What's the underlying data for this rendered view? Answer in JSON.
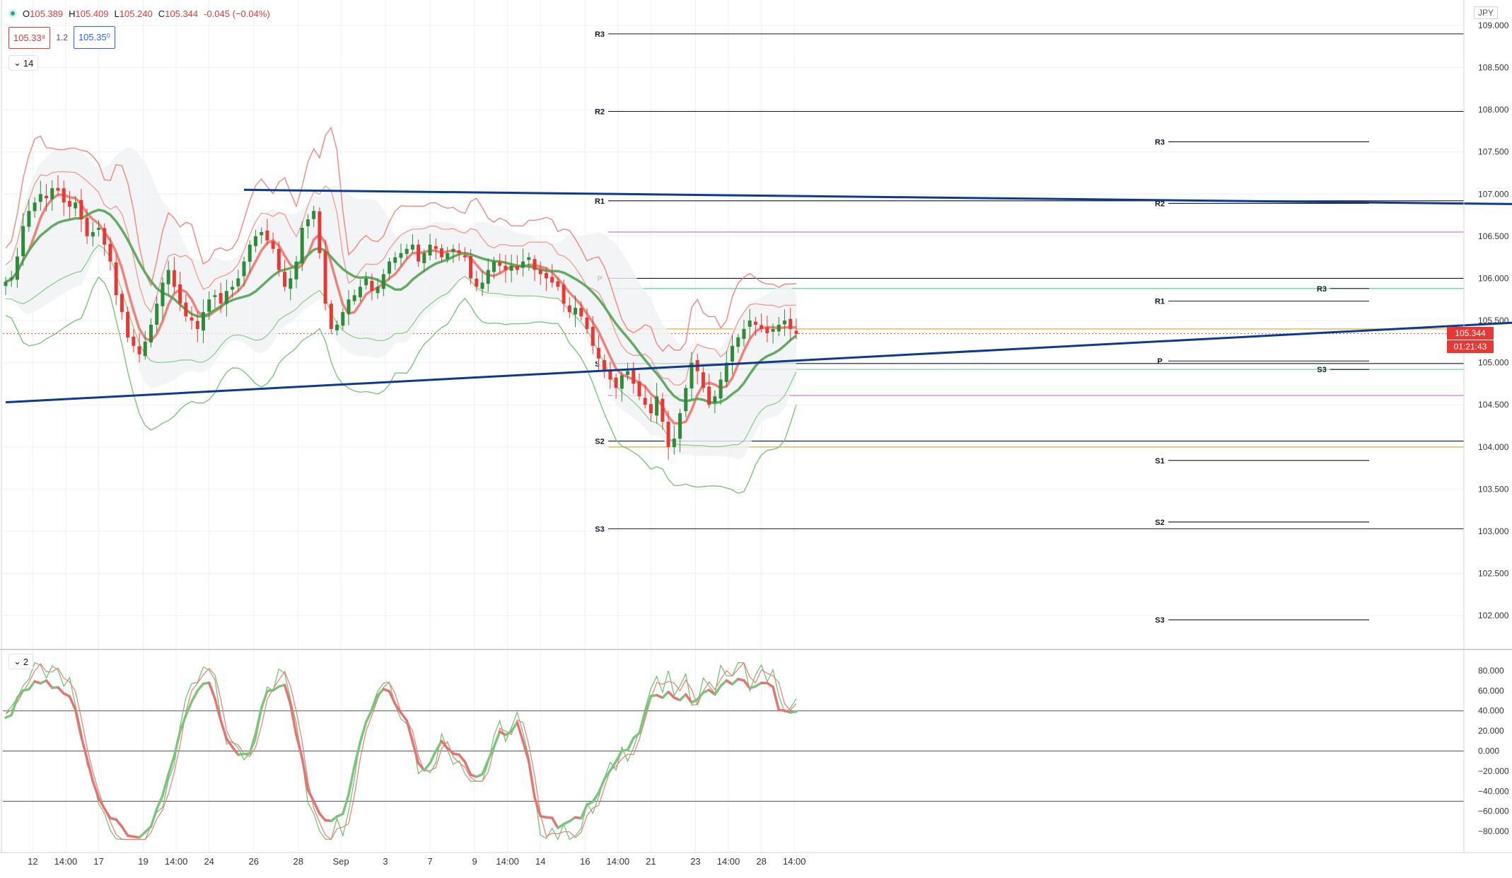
{
  "header": {
    "open_label": "O",
    "open": "105.389",
    "high_label": "H",
    "high": "105.409",
    "low_label": "L",
    "low": "105.240",
    "close_label": "C",
    "close": "105.344",
    "change": "-0.045 (−0.04%)",
    "sell_price": "105.33⁸",
    "spread": "1.2",
    "buy_price": "105.35⁰",
    "main_pane_label": "14",
    "osc_pane_label": "2",
    "currency": "JPY"
  },
  "price_tags": {
    "last_price": "105.344",
    "countdown": "01:21:43"
  },
  "colors": {
    "up": "#2e8b3a",
    "down": "#e53935",
    "trendline": "#0d3a8c",
    "band_red": "#ef7a74",
    "band_green": "#6bbf6b",
    "pivot": "#131722",
    "magenta": "#da82e0",
    "gold": "#e6b34a",
    "mint": "#7ed9a6"
  },
  "chart_data": [
    {
      "type": "candlestick",
      "symbol_currency": "JPY",
      "ylim": [
        101.85,
        109.05
      ],
      "y_ticks": [
        "102.000",
        "102.500",
        "103.000",
        "103.500",
        "104.000",
        "104.500",
        "105.000",
        "105.500",
        "106.000",
        "106.500",
        "107.000",
        "107.500",
        "108.000",
        "108.500",
        "109.000"
      ],
      "x_ticks": [
        {
          "bar": 14,
          "label": "12"
        },
        {
          "bar": 31,
          "label": "14:00"
        },
        {
          "bar": 48,
          "label": "17"
        },
        {
          "bar": 71,
          "label": "19"
        },
        {
          "bar": 88,
          "label": "14:00"
        },
        {
          "bar": 105,
          "label": "24"
        },
        {
          "bar": 128,
          "label": "26"
        },
        {
          "bar": 151,
          "label": "28"
        },
        {
          "bar": 173,
          "label": "Sep"
        },
        {
          "bar": 196,
          "label": "3"
        },
        {
          "bar": 219,
          "label": "7"
        },
        {
          "bar": 242,
          "label": "9"
        },
        {
          "bar": 259,
          "label": "14:00"
        },
        {
          "bar": 276,
          "label": "14"
        },
        {
          "bar": 299,
          "label": "16"
        },
        {
          "bar": 316,
          "label": "14:00"
        },
        {
          "bar": 333,
          "label": "21"
        },
        {
          "bar": 356,
          "label": "23"
        },
        {
          "bar": 373,
          "label": "14:00"
        },
        {
          "bar": 390,
          "label": "28"
        },
        {
          "bar": 407,
          "label": "14:00"
        }
      ],
      "closes": [
        105.96,
        106.01,
        106.26,
        106.62,
        106.8,
        106.9,
        107.0,
        106.95,
        107.07,
        107.04,
        106.9,
        106.85,
        106.9,
        106.7,
        106.5,
        106.55,
        106.6,
        106.4,
        106.2,
        105.8,
        105.6,
        105.3,
        105.2,
        105.1,
        105.25,
        105.45,
        105.7,
        105.95,
        106.1,
        105.9,
        105.7,
        105.55,
        105.5,
        105.4,
        105.6,
        105.75,
        105.8,
        105.7,
        105.85,
        105.9,
        106.0,
        106.2,
        106.4,
        106.5,
        106.55,
        106.45,
        106.35,
        106.1,
        105.9,
        106.0,
        106.2,
        106.6,
        106.7,
        106.8,
        106.3,
        105.7,
        105.4,
        105.45,
        105.6,
        105.75,
        105.8,
        105.9,
        106.0,
        105.85,
        105.9,
        106.05,
        106.2,
        106.25,
        106.3,
        106.35,
        106.4,
        106.2,
        106.3,
        106.4,
        106.35,
        106.25,
        106.3,
        106.35,
        106.3,
        106.25,
        106.0,
        105.9,
        105.95,
        106.1,
        106.2,
        106.15,
        106.1,
        106.15,
        106.1,
        106.2,
        106.25,
        106.1,
        106.05,
        106.0,
        105.95,
        105.9,
        105.7,
        105.6,
        105.65,
        105.55,
        105.4,
        105.2,
        105.05,
        104.9,
        104.8,
        104.7,
        104.85,
        104.9,
        104.75,
        104.6,
        104.5,
        104.4,
        104.6,
        104.3,
        104.0,
        104.1,
        104.4,
        104.7,
        105.0,
        104.9,
        104.7,
        104.5,
        104.6,
        104.8,
        105.0,
        105.2,
        105.3,
        105.4,
        105.5,
        105.45,
        105.4,
        105.35,
        105.4,
        105.45,
        105.5,
        105.4,
        105.34
      ],
      "indicators": {
        "pivot_levels_left": [
          {
            "label": "R3",
            "value": 108.9
          },
          {
            "label": "R2",
            "value": 107.98
          },
          {
            "label": "R1",
            "value": 106.92
          },
          {
            "label": "P",
            "value": 106.0
          },
          {
            "label": "S1",
            "value": 104.99
          },
          {
            "label": "S2",
            "value": 104.07
          },
          {
            "label": "S3",
            "value": 103.03
          }
        ],
        "pivot_levels_right": [
          {
            "label": "R3",
            "value": 107.62
          },
          {
            "label": "R2",
            "value": 106.89
          },
          {
            "label": "R1",
            "value": 105.73
          },
          {
            "label": "P",
            "value": 105.02
          },
          {
            "label": "S1",
            "value": 103.84
          },
          {
            "label": "S2",
            "value": 103.11
          },
          {
            "label": "S3",
            "value": 101.95
          }
        ],
        "pivot_levels_short": [
          {
            "label": "R3",
            "value": 105.88
          },
          {
            "label": "S3",
            "value": 104.92
          }
        ],
        "horizontal_levels": [
          {
            "value": 106.55,
            "color_key": "magenta"
          },
          {
            "value": 104.61,
            "color_key": "magenta"
          },
          {
            "value": 105.4,
            "color_key": "gold"
          },
          {
            "value": 104.0,
            "color_key": "gold"
          },
          {
            "value": 105.88,
            "color_key": "mint"
          },
          {
            "value": 104.92,
            "color_key": "mint"
          }
        ],
        "trendlines": [
          {
            "x": [
              41,
              468
            ],
            "y": [
              107.05,
              106.72
            ]
          },
          {
            "x": 0,
            "y": 104.53,
            "x2": 470,
            "y2": 106.24
          },
          {
            "x": [
              370,
              383,
              398
            ],
            "y": [
              104.45,
              105.47,
              104.88
            ]
          },
          {
            "x": [
              379,
              438,
              454
            ],
            "y": [
              105.33,
              106.1,
              103.77
            ]
          }
        ]
      }
    },
    {
      "type": "line",
      "ylim": [
        -94,
        94
      ],
      "y_ticks": [
        "80.000",
        "60.000",
        "40.000",
        "20.000",
        "0.000",
        "−20.000",
        "−40.000",
        "−60.000",
        "−80.000"
      ],
      "reference_levels": [
        40,
        0,
        -50
      ],
      "series_keypoints": [
        {
          "x": [
            0,
            10,
            20,
            35,
            45,
            55,
            65,
            75,
            85,
            95,
            105,
            115,
            125,
            135,
            145,
            155,
            165,
            175,
            185,
            195,
            205,
            215,
            225,
            235,
            245,
            255,
            265,
            275,
            285,
            295,
            305,
            315,
            325,
            335,
            345,
            355,
            365,
            375,
            385,
            395,
            400,
            405
          ],
          "values": [
            30,
            60,
            70,
            50,
            -30,
            -70,
            -85,
            -80,
            -20,
            50,
            70,
            10,
            -10,
            60,
            70,
            -30,
            -70,
            -60,
            30,
            65,
            40,
            -20,
            10,
            -10,
            -30,
            15,
            30,
            -60,
            -75,
            -70,
            -40,
            -10,
            10,
            60,
            55,
            50,
            60,
            70,
            65,
            65,
            40,
            35
          ]
        }
      ]
    }
  ]
}
